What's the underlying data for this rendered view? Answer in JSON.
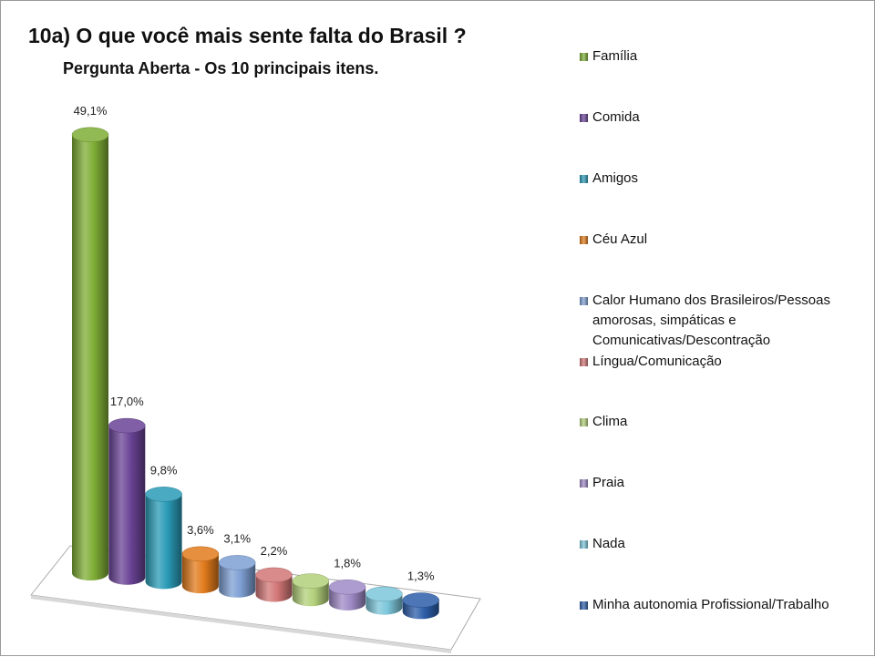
{
  "chart_data": {
    "type": "cylinder-bar",
    "title": "10a) O que você mais sente falta do Brasil ?",
    "subtitle": "Pergunta Aberta - Os 10 principais itens.",
    "categories": [
      "Família",
      "Comida",
      "Amigos",
      "Céu Azul",
      "Calor Humano dos Brasileiros/Pessoas amorosas, simpáticas e Comunicativas/Descontração",
      "Língua/Comunicação",
      "Clima",
      "Praia",
      "Nada",
      "Minha autonomia Profissional/Trabalho"
    ],
    "values": [
      49.1,
      17.0,
      9.8,
      3.6,
      3.1,
      2.2,
      2.0,
      1.8,
      1.5,
      1.3
    ],
    "value_labels": [
      "49,1%",
      "17,0%",
      "9,8%",
      "3,6%",
      "3,1%",
      "2,2%",
      null,
      "1,8%",
      null,
      "1,3%"
    ],
    "colors": [
      "#7fae36",
      "#6a4396",
      "#2a9bb7",
      "#e27b1c",
      "#7e9fd3",
      "#d27676",
      "#b3d07b",
      "#9f8ac6",
      "#7cc6da",
      "#2d5ea9"
    ],
    "legend": "right"
  }
}
